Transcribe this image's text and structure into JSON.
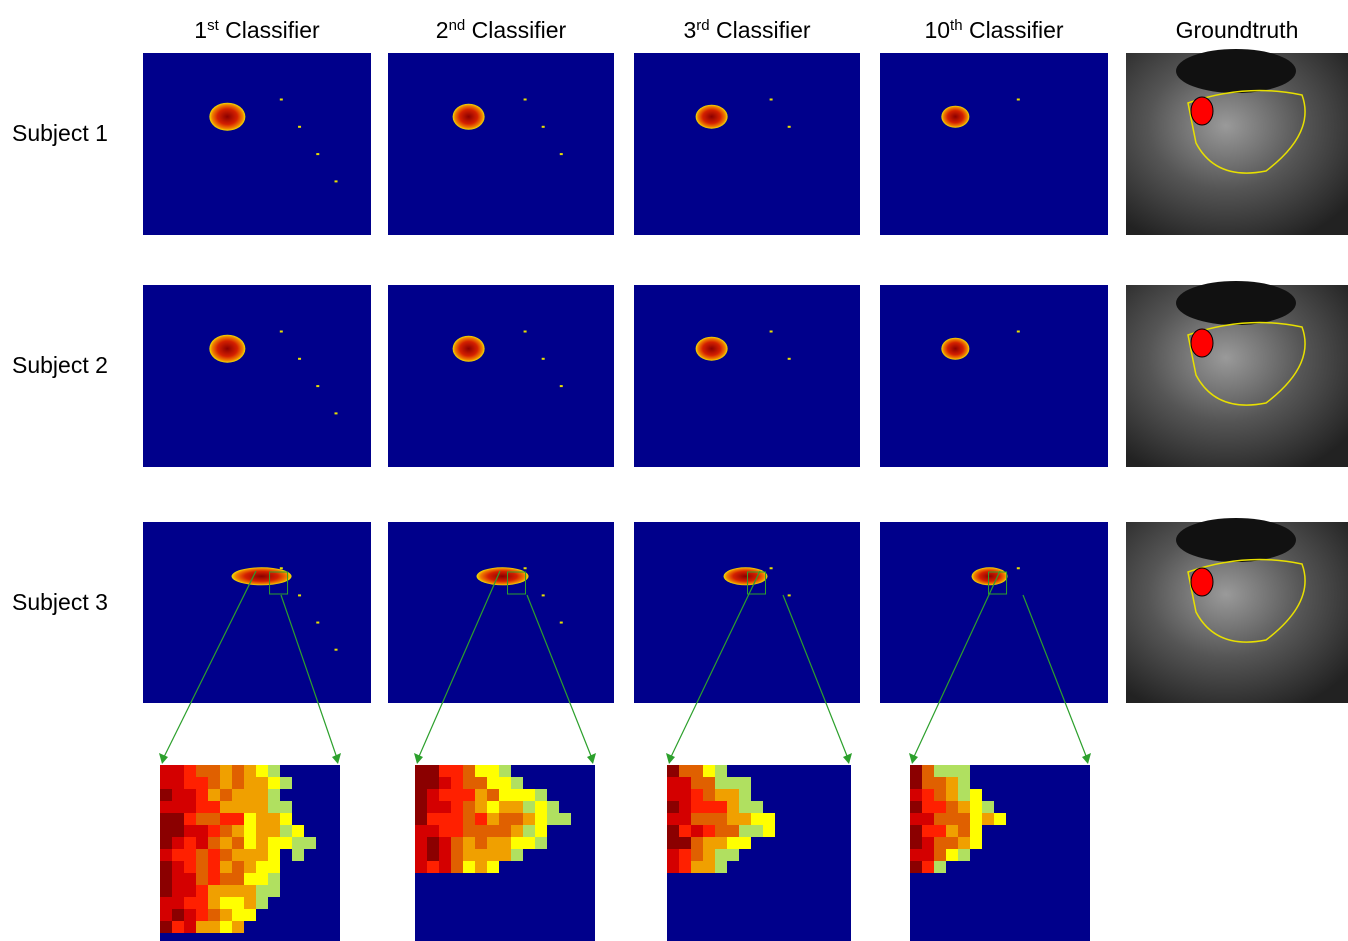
{
  "header": {
    "columns": [
      {
        "number": "1",
        "suffix": "st",
        "rest": "Classifier"
      },
      {
        "number": "2",
        "suffix": "nd",
        "rest": "Classifier"
      },
      {
        "number": "3",
        "suffix": "rd",
        "rest": "Classifier"
      },
      {
        "number": "10",
        "suffix": "th",
        "rest": "Classifier"
      },
      {
        "rest": "Groundtruth"
      }
    ]
  },
  "rows": [
    "Subject 1",
    "Subject 2",
    "Subject 3"
  ]
}
